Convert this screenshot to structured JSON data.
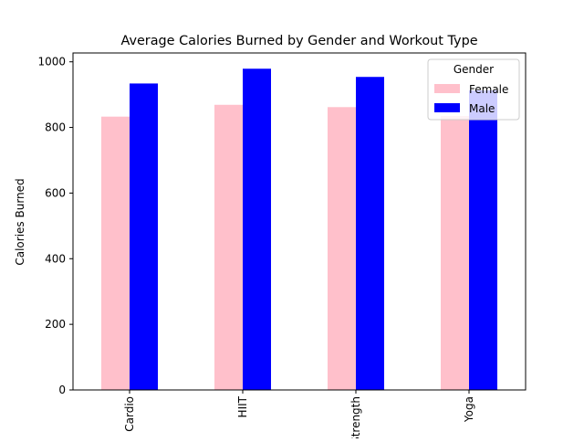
{
  "chart_data": {
    "type": "bar",
    "title": "Average Calories Burned by Gender and Workout Type",
    "xlabel": "",
    "ylabel": "Calories Burned",
    "categories": [
      "Cardio",
      "HIIT",
      "Strength",
      "Yoga"
    ],
    "series": [
      {
        "name": "Female",
        "color": "#ffc0cb",
        "values": [
          833,
          869,
          862,
          835
        ]
      },
      {
        "name": "Male",
        "color": "#0000ff",
        "values": [
          934,
          979,
          954,
          913
        ]
      }
    ],
    "ylim": [
      0,
      1027
    ],
    "yticks": [
      0,
      200,
      400,
      600,
      800,
      1000
    ],
    "grid": false,
    "legend": {
      "title": "Gender",
      "placement": "top-right"
    }
  }
}
